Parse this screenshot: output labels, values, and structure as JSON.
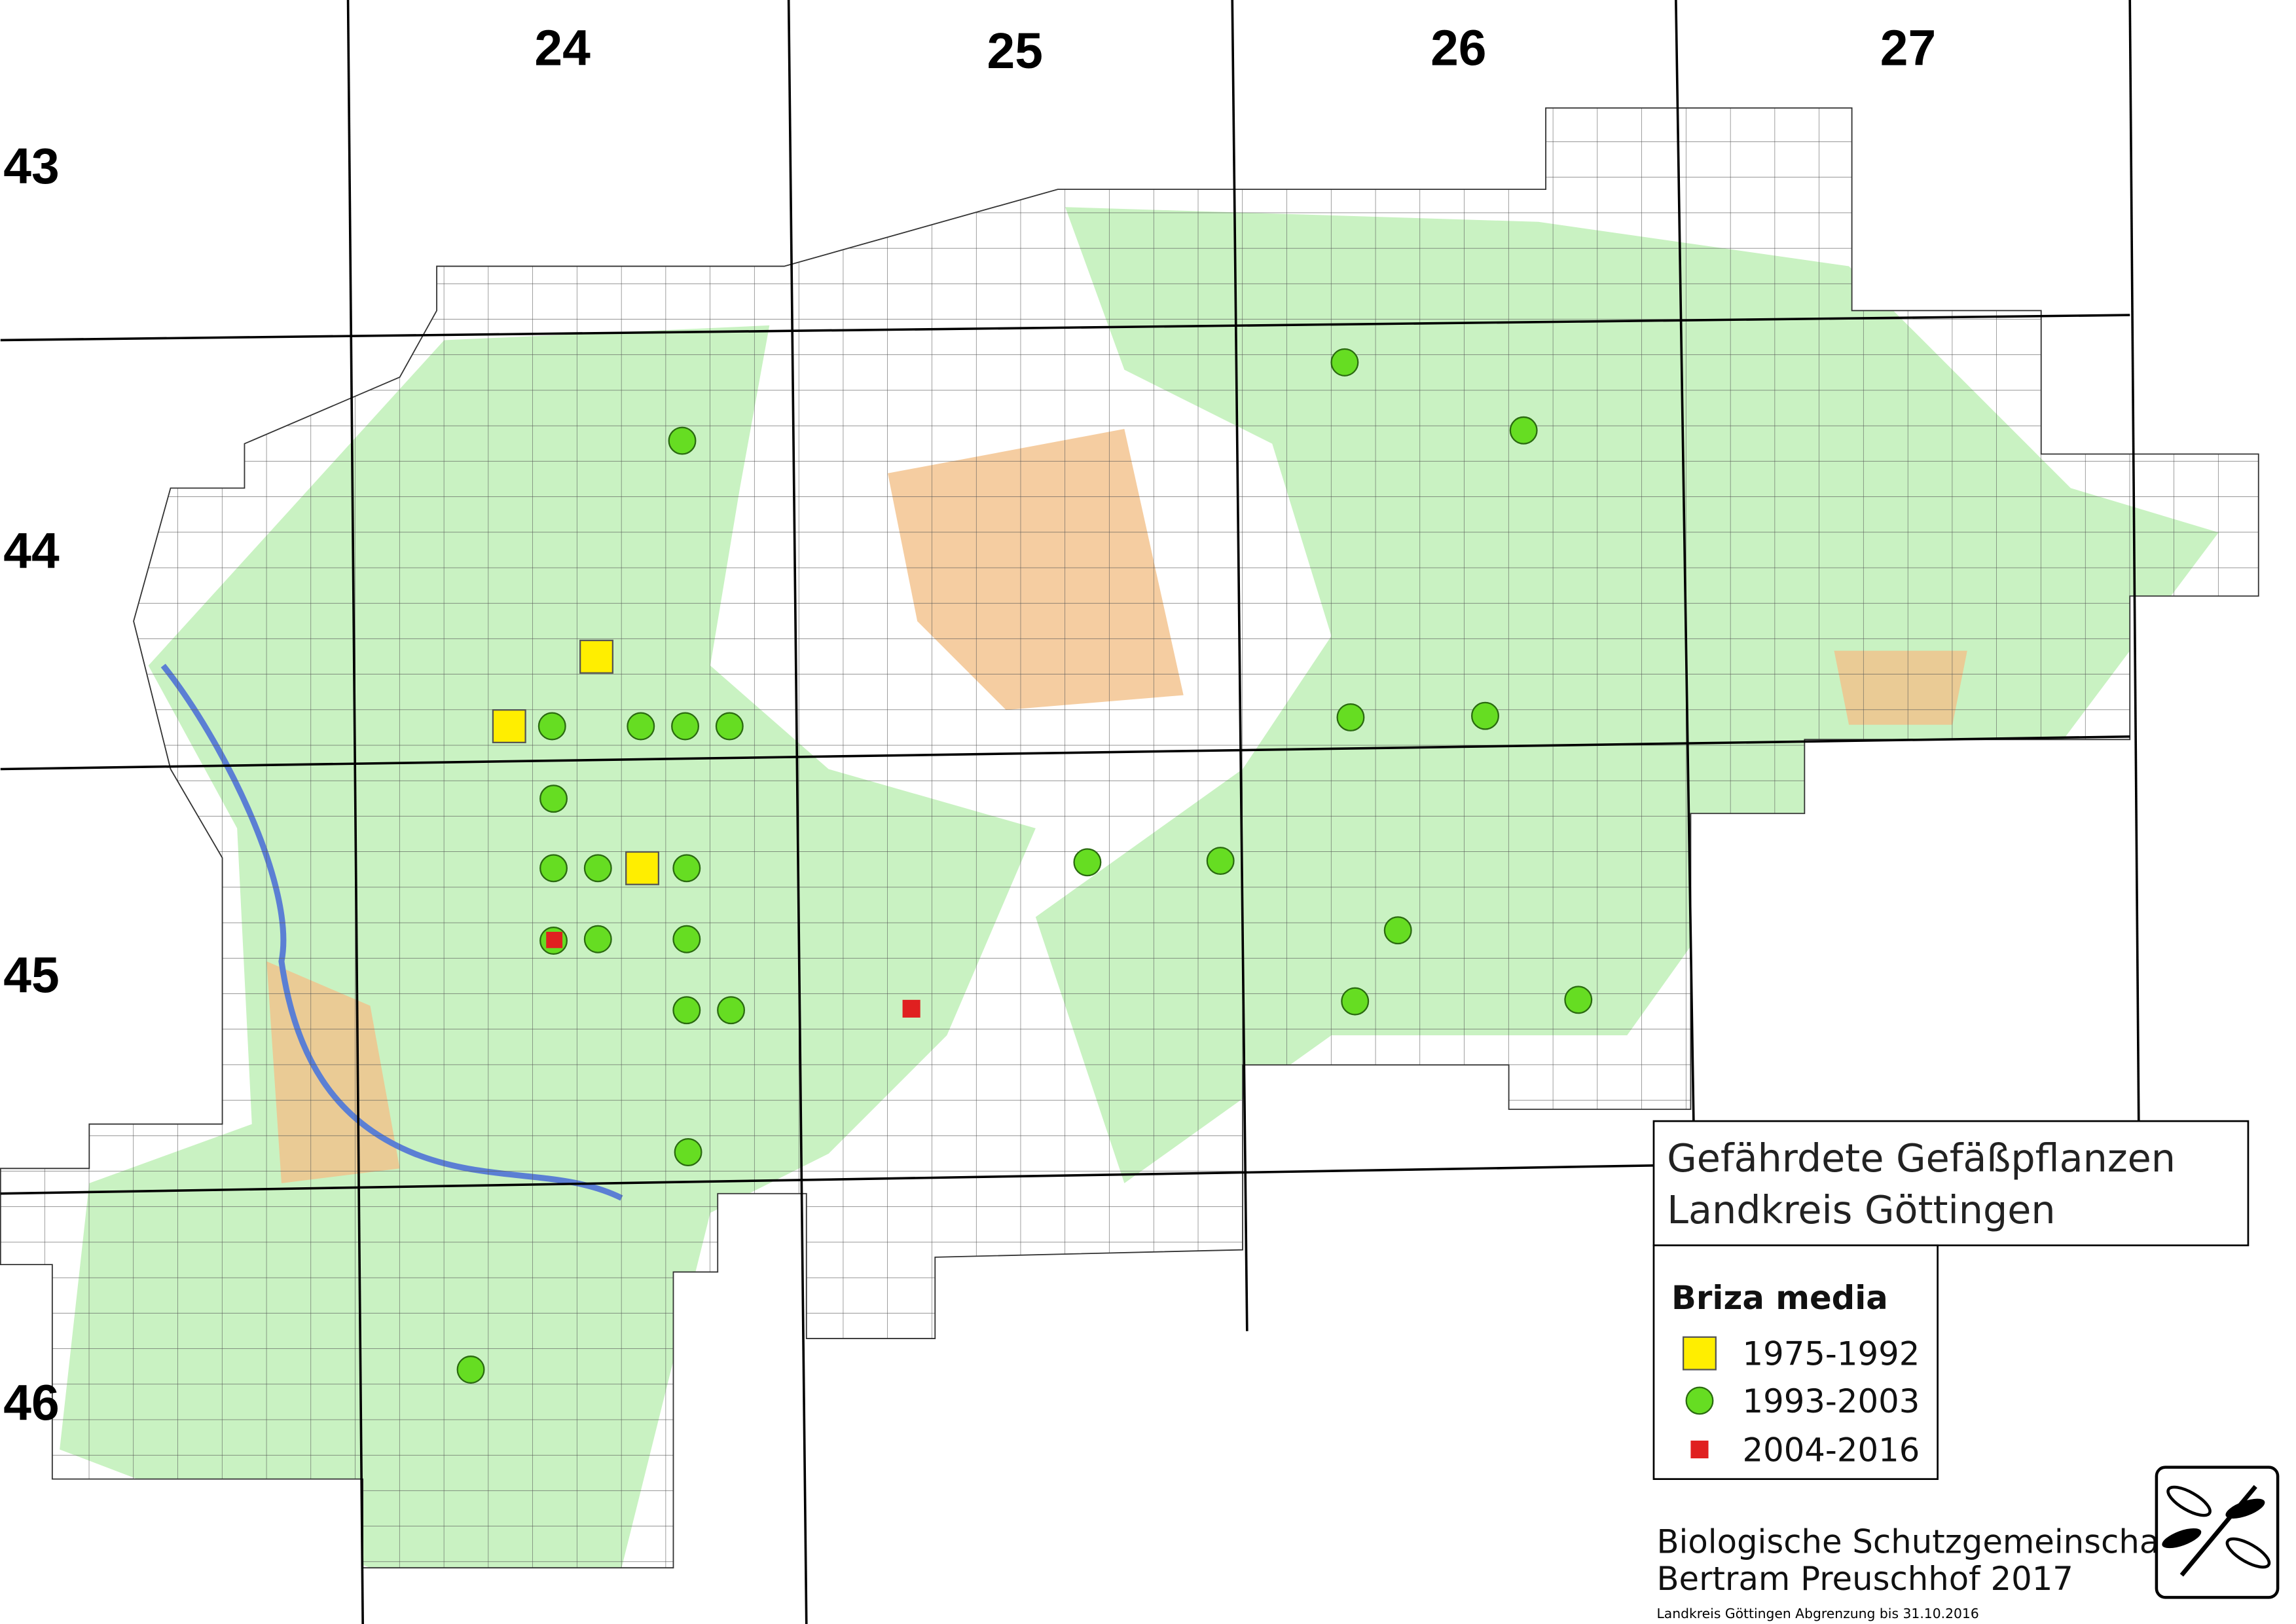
{
  "grid": {
    "columns": [
      "24",
      "25",
      "26",
      "27"
    ],
    "rows": [
      "43",
      "44",
      "45",
      "46"
    ]
  },
  "title": {
    "line1": "Gefährdete Gefäßpflanzen",
    "line2": "Landkreis Göttingen"
  },
  "legend": {
    "title": "Briza media",
    "items": [
      {
        "label": "1975-1992"
      },
      {
        "label": "1993-2003"
      },
      {
        "label": "2004-2016"
      }
    ]
  },
  "footer": {
    "org": "Biologische Schutzgemeinschaft",
    "author": "Bertram Preuschhof 2017",
    "note": "Landkreis Göttingen Abgrenzung bis 31.10.2016"
  }
}
